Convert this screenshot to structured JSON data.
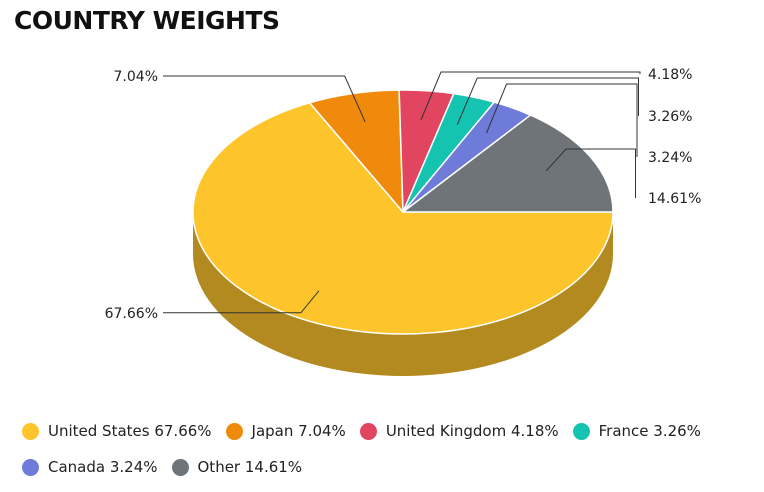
{
  "chart_data": {
    "type": "pie",
    "title": "COUNTRY WEIGHTS",
    "slices": [
      {
        "label": "United States",
        "value": 67.66,
        "value_label": "67.66%",
        "legend": "United States 67.66%",
        "color": "#fec42b",
        "side_color": "#b38a1f"
      },
      {
        "label": "Japan",
        "value": 7.04,
        "value_label": "7.04%",
        "legend": "Japan 7.04%",
        "color": "#f08a0c",
        "side_color": "#a86108"
      },
      {
        "label": "United Kingdom",
        "value": 4.18,
        "value_label": "4.18%",
        "legend": "United Kingdom 4.18%",
        "color": "#e2455f",
        "side_color": "#9e3043"
      },
      {
        "label": "France",
        "value": 3.26,
        "value_label": "3.26%",
        "legend": "France 3.26%",
        "color": "#14c4b0",
        "side_color": "#0e897b"
      },
      {
        "label": "Canada",
        "value": 3.24,
        "value_label": "3.24%",
        "legend": "Canada 3.24%",
        "color": "#6e7bd8",
        "side_color": "#4d5697"
      },
      {
        "label": "Other",
        "value": 14.61,
        "value_label": "14.61%",
        "legend": "Other 14.61%",
        "color": "#6e7478",
        "side_color": "#4d5154"
      }
    ],
    "legend_position": "bottom"
  }
}
